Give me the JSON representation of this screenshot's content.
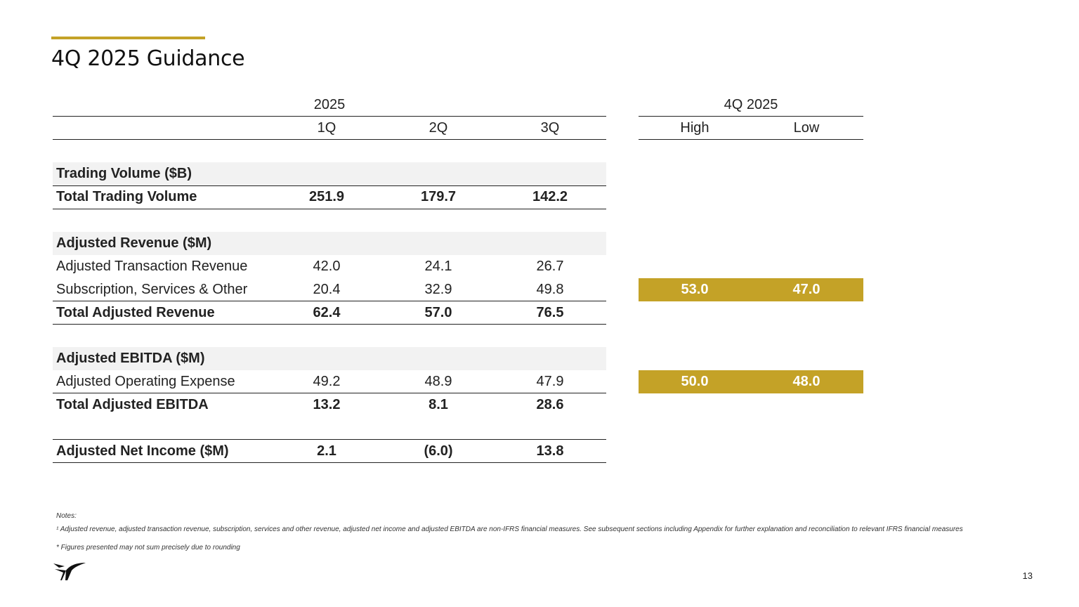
{
  "title": "4Q 2025 Guidance",
  "colors": {
    "accent": "#c4a227",
    "band": "#f2f2f2"
  },
  "header": {
    "group_2025": "2025",
    "group_4q2025": "4Q 2025",
    "cols": [
      "1Q",
      "2Q",
      "3Q"
    ],
    "guidance_cols": [
      "High",
      "Low"
    ]
  },
  "rows": {
    "trading_section": "Trading Volume ($B)",
    "total_trading": {
      "label": "Total Trading Volume",
      "values": [
        "251.9",
        "179.7",
        "142.2"
      ]
    },
    "revenue_section": "Adjusted Revenue ($M)",
    "adj_transaction": {
      "label": "Adjusted Transaction Revenue",
      "values": [
        "42.0",
        "24.1",
        "26.7"
      ]
    },
    "subscription": {
      "label": "Subscription, Services & Other",
      "values": [
        "20.4",
        "32.9",
        "49.8"
      ],
      "guidance": [
        "53.0",
        "47.0"
      ]
    },
    "total_revenue": {
      "label": "Total Adjusted Revenue",
      "values": [
        "62.4",
        "57.0",
        "76.5"
      ]
    },
    "ebitda_section": "Adjusted EBITDA ($M)",
    "opex": {
      "label": "Adjusted Operating Expense",
      "values": [
        "49.2",
        "48.9",
        "47.9"
      ],
      "guidance": [
        "50.0",
        "48.0"
      ]
    },
    "total_ebitda": {
      "label": "Total Adjusted EBITDA",
      "values": [
        "13.2",
        "8.1",
        "28.6"
      ]
    },
    "net_income": {
      "label": "Adjusted Net Income ($M)",
      "values": [
        "2.1",
        "(6.0)",
        "13.8"
      ]
    }
  },
  "notes": {
    "heading": "Notes:",
    "note1": "¹ Adjusted revenue, adjusted transaction revenue, subscription, services and other revenue, adjusted net income and adjusted EBITDA are non-IFRS financial measures. See subsequent sections including Appendix for further explanation and reconciliation to relevant IFRS financial measures",
    "note2": "* Figures presented may not sum precisely due to rounding"
  },
  "page_number": "13",
  "logo_icon": "bird-wing-logo-icon"
}
